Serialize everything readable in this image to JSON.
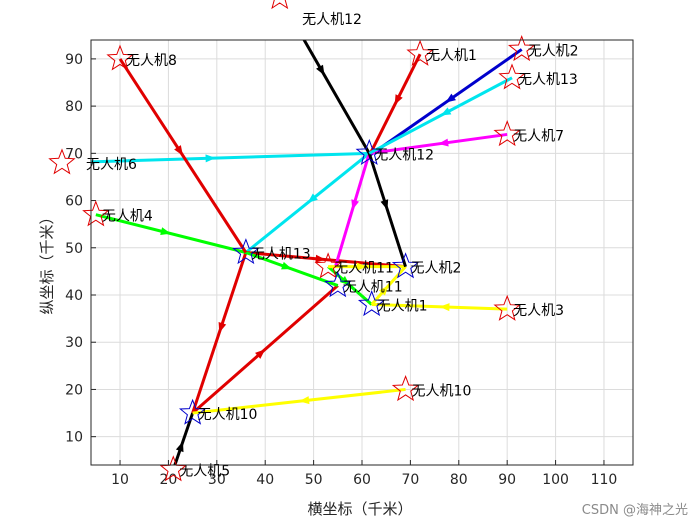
{
  "chart_data": {
    "type": "line",
    "xlabel": "横坐标（千米）",
    "ylabel": "纵坐标（千米）",
    "xlim": [
      4,
      116
    ],
    "ylim": [
      4,
      94
    ],
    "xticks": [
      10,
      20,
      30,
      40,
      50,
      60,
      70,
      80,
      90,
      100,
      110
    ],
    "yticks": [
      10,
      20,
      30,
      40,
      50,
      60,
      70,
      80,
      90
    ],
    "grid": true,
    "drones": [
      {
        "label": "无人机1",
        "start": [
          72,
          91
        ],
        "path": [
          [
            72,
            91
          ],
          [
            61.5,
            69.5
          ]
        ],
        "color": "#e00000"
      },
      {
        "label": "无人机2",
        "start": [
          93,
          92
        ],
        "path": [
          [
            93,
            92
          ],
          [
            61.5,
            69.5
          ]
        ],
        "color": "#0000cc"
      },
      {
        "label": "无人机3",
        "start": [
          90,
          37
        ],
        "path": [
          [
            90,
            37
          ],
          [
            62,
            38
          ]
        ],
        "color": "#ffff00"
      },
      {
        "label": "无人机4",
        "start": [
          5,
          57
        ],
        "path": [
          [
            5,
            57
          ],
          [
            36,
            49
          ]
        ],
        "color": "#00ff00"
      },
      {
        "label": "无人机5",
        "start": [
          21,
          3
        ],
        "path": [
          [
            21,
            3
          ],
          [
            25,
            15
          ]
        ],
        "color": "#000000"
      },
      {
        "label": "无人机6",
        "start": [
          -2,
          68
        ],
        "path": [
          [
            -2,
            68
          ],
          [
            61.5,
            70
          ]
        ],
        "color": "#00e5ee"
      },
      {
        "label": "无人机7",
        "start": [
          90,
          74
        ],
        "path": [
          [
            90,
            74
          ],
          [
            61.5,
            70
          ]
        ],
        "color": "#ff00ff"
      },
      {
        "label": "无人机8",
        "start": [
          10,
          90
        ],
        "path": [
          [
            10,
            90
          ],
          [
            36,
            49
          ]
        ],
        "color": "#e00000"
      },
      {
        "label": "无人机10",
        "start": [
          69,
          20
        ],
        "path": [
          [
            69,
            20
          ],
          [
            25,
            15
          ]
        ],
        "color": "#ffff00"
      },
      {
        "label": "无人机11",
        "start": [
          53,
          46
        ],
        "path": [
          [
            53,
            46
          ],
          [
            69,
            46
          ]
        ],
        "color": "#ffff00"
      },
      {
        "label": "无人机12",
        "start": [
          43,
          103
        ],
        "path": [
          [
            43,
            103
          ],
          [
            61.5,
            70
          ],
          [
            69,
            46
          ]
        ],
        "color": "#000000"
      },
      {
        "label": "无人机13",
        "start": [
          91,
          86
        ],
        "path": [
          [
            91,
            86
          ],
          [
            61.5,
            70
          ]
        ],
        "color": "#00e5ee"
      }
    ],
    "extra_paths": [
      {
        "path": [
          [
            61.5,
            70
          ],
          [
            36,
            49
          ]
        ],
        "color": "#00e5ee"
      },
      {
        "path": [
          [
            36,
            49
          ],
          [
            25,
            15
          ]
        ],
        "color": "#e00000"
      },
      {
        "path": [
          [
            36,
            49
          ],
          [
            69,
            46
          ]
        ],
        "color": "#e00000"
      },
      {
        "path": [
          [
            25,
            15
          ],
          [
            55,
            42
          ]
        ],
        "color": "#e00000"
      },
      {
        "path": [
          [
            61.5,
            70
          ],
          [
            54.5,
            46
          ]
        ],
        "color": "#ff00ff"
      },
      {
        "path": [
          [
            36,
            49
          ],
          [
            55,
            42
          ]
        ],
        "color": "#00ff00"
      },
      {
        "path": [
          [
            53,
            46
          ],
          [
            62,
            38
          ]
        ],
        "color": "#00ff00"
      },
      {
        "path": [
          [
            62,
            38
          ],
          [
            69,
            46
          ]
        ],
        "color": "#ffff00"
      }
    ],
    "targets": [
      {
        "label": "无人机12",
        "pos": [
          61.5,
          70
        ]
      },
      {
        "label": "无人机13",
        "pos": [
          36,
          49
        ]
      },
      {
        "label": "无人机2",
        "pos": [
          69,
          46
        ]
      },
      {
        "label": "无人机11",
        "pos": [
          55,
          42
        ]
      },
      {
        "label": "无人机1",
        "pos": [
          62,
          38
        ]
      },
      {
        "label": "无人机10",
        "pos": [
          25,
          15
        ]
      }
    ]
  },
  "watermark": "CSDN @海神之光"
}
